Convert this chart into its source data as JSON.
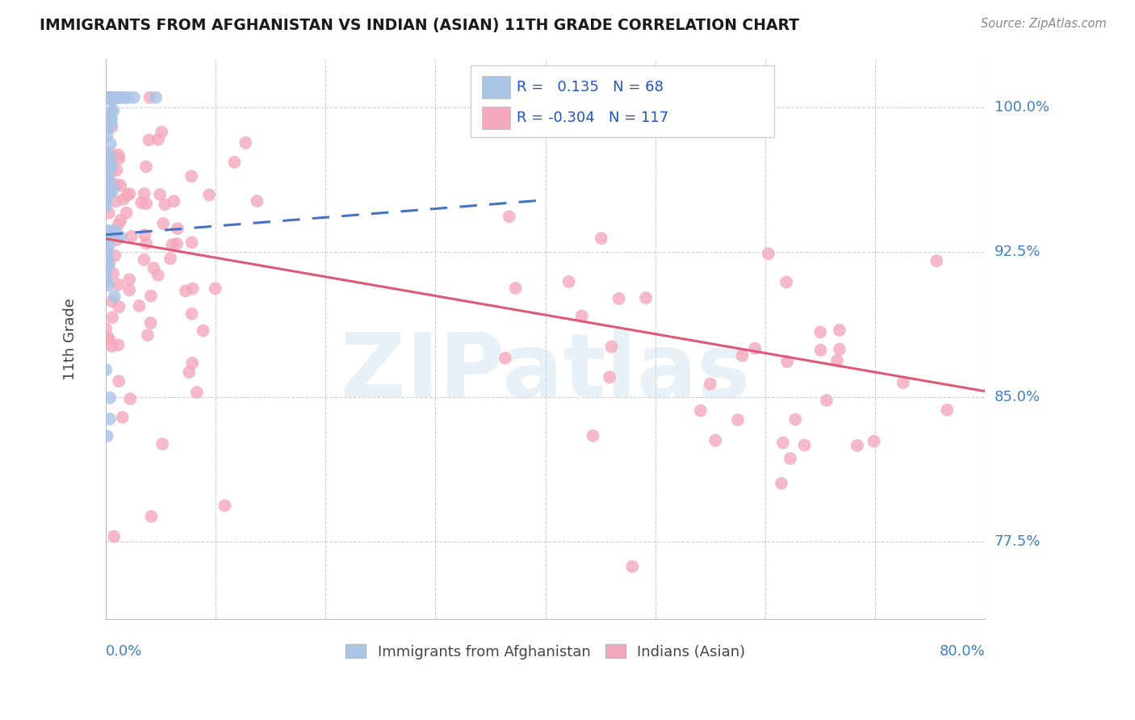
{
  "title": "IMMIGRANTS FROM AFGHANISTAN VS INDIAN (ASIAN) 11TH GRADE CORRELATION CHART",
  "source": "Source: ZipAtlas.com",
  "ylabel": "11th Grade",
  "r_afghan": 0.135,
  "n_afghan": 68,
  "r_indian": -0.304,
  "n_indian": 117,
  "watermark": "ZIPatlas",
  "legend_label_afghan": "Immigrants from Afghanistan",
  "legend_label_indian": "Indians (Asian)",
  "color_afghan": "#aac4e8",
  "color_indian": "#f4a8bc",
  "line_color_afghan": "#4472c4",
  "line_color_indian": "#e05878",
  "title_color": "#1a1a1a",
  "axis_label_color": "#4080c0",
  "background_color": "#ffffff",
  "xmin": 0.0,
  "xmax": 0.8,
  "ymin": 0.735,
  "ymax": 1.025,
  "ytick_labels": [
    "100.0%",
    "92.5%",
    "85.0%",
    "77.5%"
  ],
  "ytick_vals": [
    1.0,
    0.925,
    0.85,
    0.775
  ],
  "xtick_vals": [
    0.0,
    0.1,
    0.2,
    0.3,
    0.4,
    0.5,
    0.6,
    0.7,
    0.8
  ],
  "ind_line_x0": 0.0,
  "ind_line_x1": 0.8,
  "ind_line_y0": 0.932,
  "ind_line_y1": 0.853,
  "afg_line_x0": 0.0,
  "afg_line_x1": 0.4,
  "afg_line_y0": 0.934,
  "afg_line_y1": 0.952
}
